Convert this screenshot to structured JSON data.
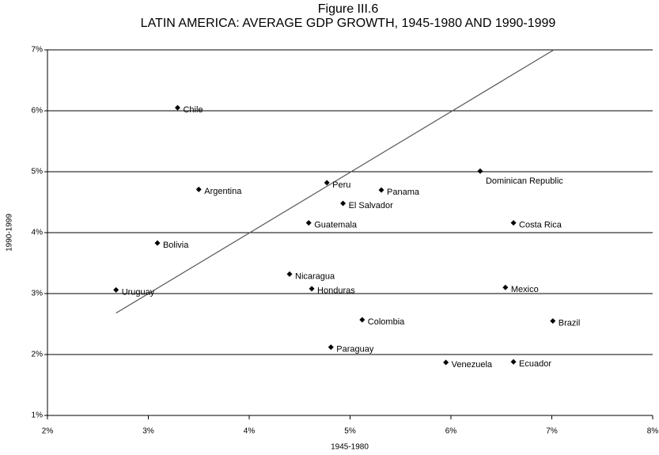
{
  "chart_data": {
    "type": "scatter",
    "title": "Figure III.6",
    "subtitle": "LATIN AMERICA: AVERAGE GDP GROWTH, 1945-1980 AND 1990-1999",
    "x_label": "1945-1980",
    "y_label": "1990-1999",
    "labels": [
      "Chile",
      "Argentina",
      "Bolivia",
      "Uruguay",
      "Peru",
      "Panama",
      "El Salvador",
      "Guatemala",
      "Nicaragua",
      "Honduras",
      "Colombia",
      "Paraguay",
      "Venezuela",
      "Ecuador",
      "Brazil",
      "Mexico",
      "Costa Rica",
      "Dominican Republic"
    ],
    "x": [
      3.29,
      3.5,
      3.09,
      2.68,
      4.77,
      5.31,
      4.93,
      4.59,
      4.4,
      4.62,
      5.12,
      4.81,
      5.95,
      6.62,
      7.01,
      6.54,
      6.62,
      6.29
    ],
    "values": [
      6.05,
      4.71,
      3.83,
      3.06,
      4.82,
      4.7,
      4.48,
      4.16,
      3.32,
      3.08,
      2.57,
      2.12,
      1.87,
      1.88,
      2.55,
      3.1,
      4.16,
      5.01
    ],
    "color": "#000000",
    "reference_line": {
      "x": [
        2.68,
        7.02
      ],
      "y": [
        2.68,
        7.0
      ],
      "color": "#555555"
    },
    "xlim": [
      2,
      8
    ],
    "ylim": [
      1,
      7
    ],
    "xticks": [
      {
        "value": 2,
        "label": "2%"
      },
      {
        "value": 3,
        "label": "3%"
      },
      {
        "value": 4,
        "label": "4%"
      },
      {
        "value": 5,
        "label": "5%"
      },
      {
        "value": 6,
        "label": "6%"
      },
      {
        "value": 7,
        "label": "7%"
      },
      {
        "value": 8,
        "label": "8%"
      }
    ],
    "yticks": [
      {
        "value": 1,
        "label": "1%"
      },
      {
        "value": 2,
        "label": "2%"
      },
      {
        "value": 3,
        "label": "3%"
      },
      {
        "value": 4,
        "label": "4%"
      },
      {
        "value": 5,
        "label": "5%"
      },
      {
        "value": 6,
        "label": "6%"
      },
      {
        "value": 7,
        "label": "7%"
      }
    ],
    "grid": true
  }
}
